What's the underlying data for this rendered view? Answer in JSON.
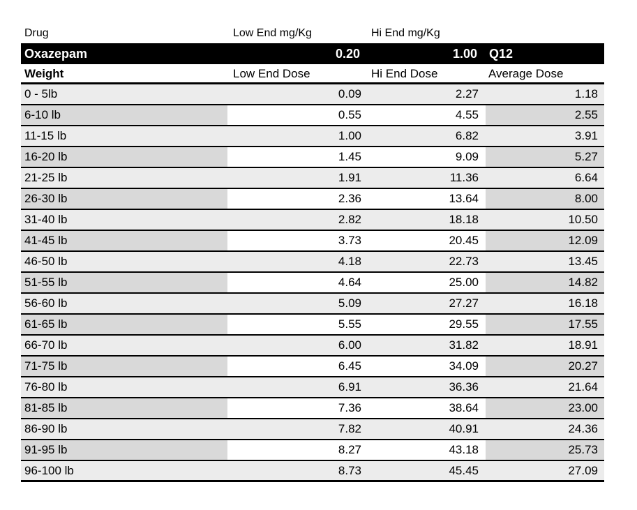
{
  "colors": {
    "band_background": "#000000",
    "band_text": "#ffffff",
    "row_light_gray": "#ececec",
    "row_dark_gray": "#d9d9d9",
    "border": "#000000"
  },
  "table": {
    "mgkg_header": {
      "drug": "Drug",
      "low": "Low End mg/Kg",
      "hi": "Hi End mg/Kg"
    },
    "drug_band": {
      "name": "Oxazepam",
      "low_end_mg_kg": "0.20",
      "hi_end_mg_kg": "1.00",
      "frequency": "Q12"
    },
    "dose_header": {
      "weight": "Weight",
      "low": "Low End Dose",
      "hi": "Hi End Dose",
      "avg": "Average Dose"
    },
    "rows": [
      {
        "weight": "0 - 5lb",
        "low": "0.09",
        "hi": "2.27",
        "avg": "1.18"
      },
      {
        "weight": "6-10 lb",
        "low": "0.55",
        "hi": "4.55",
        "avg": "2.55"
      },
      {
        "weight": "11-15 lb",
        "low": "1.00",
        "hi": "6.82",
        "avg": "3.91"
      },
      {
        "weight": "16-20 lb",
        "low": "1.45",
        "hi": "9.09",
        "avg": "5.27"
      },
      {
        "weight": "21-25 lb",
        "low": "1.91",
        "hi": "11.36",
        "avg": "6.64"
      },
      {
        "weight": "26-30 lb",
        "low": "2.36",
        "hi": "13.64",
        "avg": "8.00"
      },
      {
        "weight": "31-40 lb",
        "low": "2.82",
        "hi": "18.18",
        "avg": "10.50"
      },
      {
        "weight": "41-45 lb",
        "low": "3.73",
        "hi": "20.45",
        "avg": "12.09"
      },
      {
        "weight": "46-50 lb",
        "low": "4.18",
        "hi": "22.73",
        "avg": "13.45"
      },
      {
        "weight": "51-55 lb",
        "low": "4.64",
        "hi": "25.00",
        "avg": "14.82"
      },
      {
        "weight": "56-60 lb",
        "low": "5.09",
        "hi": "27.27",
        "avg": "16.18"
      },
      {
        "weight": "61-65 lb",
        "low": "5.55",
        "hi": "29.55",
        "avg": "17.55"
      },
      {
        "weight": "66-70 lb",
        "low": "6.00",
        "hi": "31.82",
        "avg": "18.91"
      },
      {
        "weight": "71-75 lb",
        "low": "6.45",
        "hi": "34.09",
        "avg": "20.27"
      },
      {
        "weight": "76-80 lb",
        "low": "6.91",
        "hi": "36.36",
        "avg": "21.64"
      },
      {
        "weight": "81-85 lb",
        "low": "7.36",
        "hi": "38.64",
        "avg": "23.00"
      },
      {
        "weight": "86-90 lb",
        "low": "7.82",
        "hi": "40.91",
        "avg": "24.36"
      },
      {
        "weight": "91-95 lb",
        "low": "8.27",
        "hi": "43.18",
        "avg": "25.73"
      },
      {
        "weight": "96-100 lb",
        "low": "8.73",
        "hi": "45.45",
        "avg": "27.09"
      }
    ]
  }
}
